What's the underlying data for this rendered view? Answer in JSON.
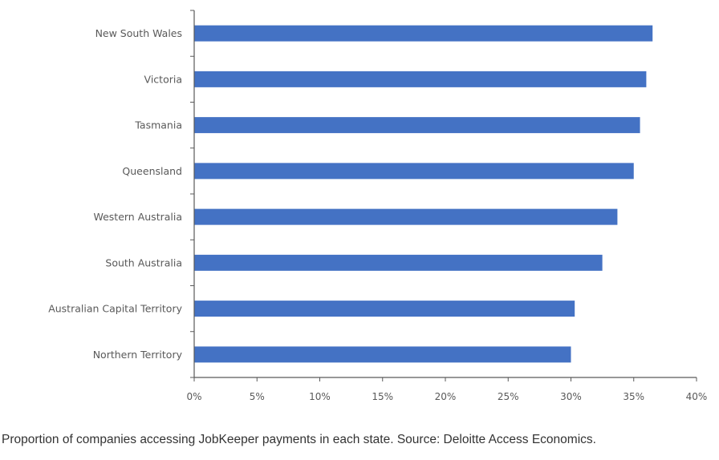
{
  "chart_data": {
    "type": "bar",
    "orientation": "horizontal",
    "title": "",
    "xlabel": "",
    "ylabel": "",
    "categories": [
      "New South Wales",
      "Victoria",
      "Tasmania",
      "Queensland",
      "Western Australia",
      "South Australia",
      "Australian Capital Territory",
      "Northern Territory"
    ],
    "values": [
      36.5,
      36.0,
      35.5,
      35.0,
      33.7,
      32.5,
      30.3,
      30.0
    ],
    "xlim": [
      0,
      40
    ],
    "x_ticks": [
      0,
      5,
      10,
      15,
      20,
      25,
      30,
      35,
      40
    ],
    "x_tick_labels": [
      "0%",
      "5%",
      "10%",
      "15%",
      "20%",
      "25%",
      "30%",
      "35%",
      "40%"
    ],
    "grid": false,
    "bar_color": "#4472C4",
    "axis_color": "#595959"
  },
  "caption": "Proportion of companies accessing JobKeeper payments in each state. Source: Deloitte Access Economics."
}
